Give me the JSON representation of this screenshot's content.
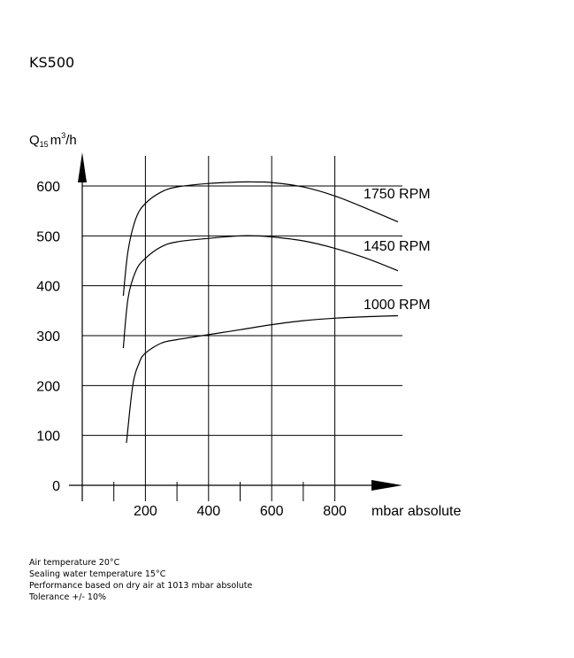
{
  "title": "KS500",
  "chart_data": {
    "type": "line",
    "ylabel": "Q15 m³/h",
    "ylabel_parts": {
      "q": "Q",
      "sub": "15",
      "unit": "m",
      "sup": "3",
      "per": "/h"
    },
    "xlabel": "mbar absolute",
    "xlim": [
      0,
      1000
    ],
    "ylim": [
      0,
      600
    ],
    "x_ticks": [
      200,
      400,
      600,
      800
    ],
    "y_ticks": [
      0,
      100,
      200,
      300,
      400,
      500,
      600
    ],
    "grid": true,
    "series": [
      {
        "name": "1750 RPM",
        "x": [
          130,
          145,
          170,
          200,
          250,
          300,
          400,
          500,
          550,
          600,
          700,
          800,
          900,
          1000
        ],
        "y": [
          380,
          470,
          535,
          565,
          588,
          598,
          605,
          608,
          608,
          607,
          598,
          580,
          555,
          528
        ]
      },
      {
        "name": "1450 RPM",
        "x": [
          130,
          145,
          170,
          200,
          250,
          300,
          400,
          500,
          550,
          600,
          700,
          800,
          900,
          1000
        ],
        "y": [
          275,
          375,
          430,
          455,
          478,
          488,
          495,
          500,
          500,
          498,
          490,
          475,
          455,
          430
        ]
      },
      {
        "name": "1000 RPM",
        "x": [
          140,
          160,
          180,
          200,
          250,
          300,
          400,
          500,
          600,
          700,
          800,
          900,
          1000
        ],
        "y": [
          85,
          200,
          245,
          265,
          285,
          292,
          302,
          312,
          322,
          330,
          335,
          338,
          340
        ]
      }
    ]
  },
  "notes": [
    "Air temperature 20°C",
    "Sealing water temperature 15°C",
    "Performance based on dry air at 1013 mbar absolute",
    "Tolerance +/- 10%"
  ]
}
